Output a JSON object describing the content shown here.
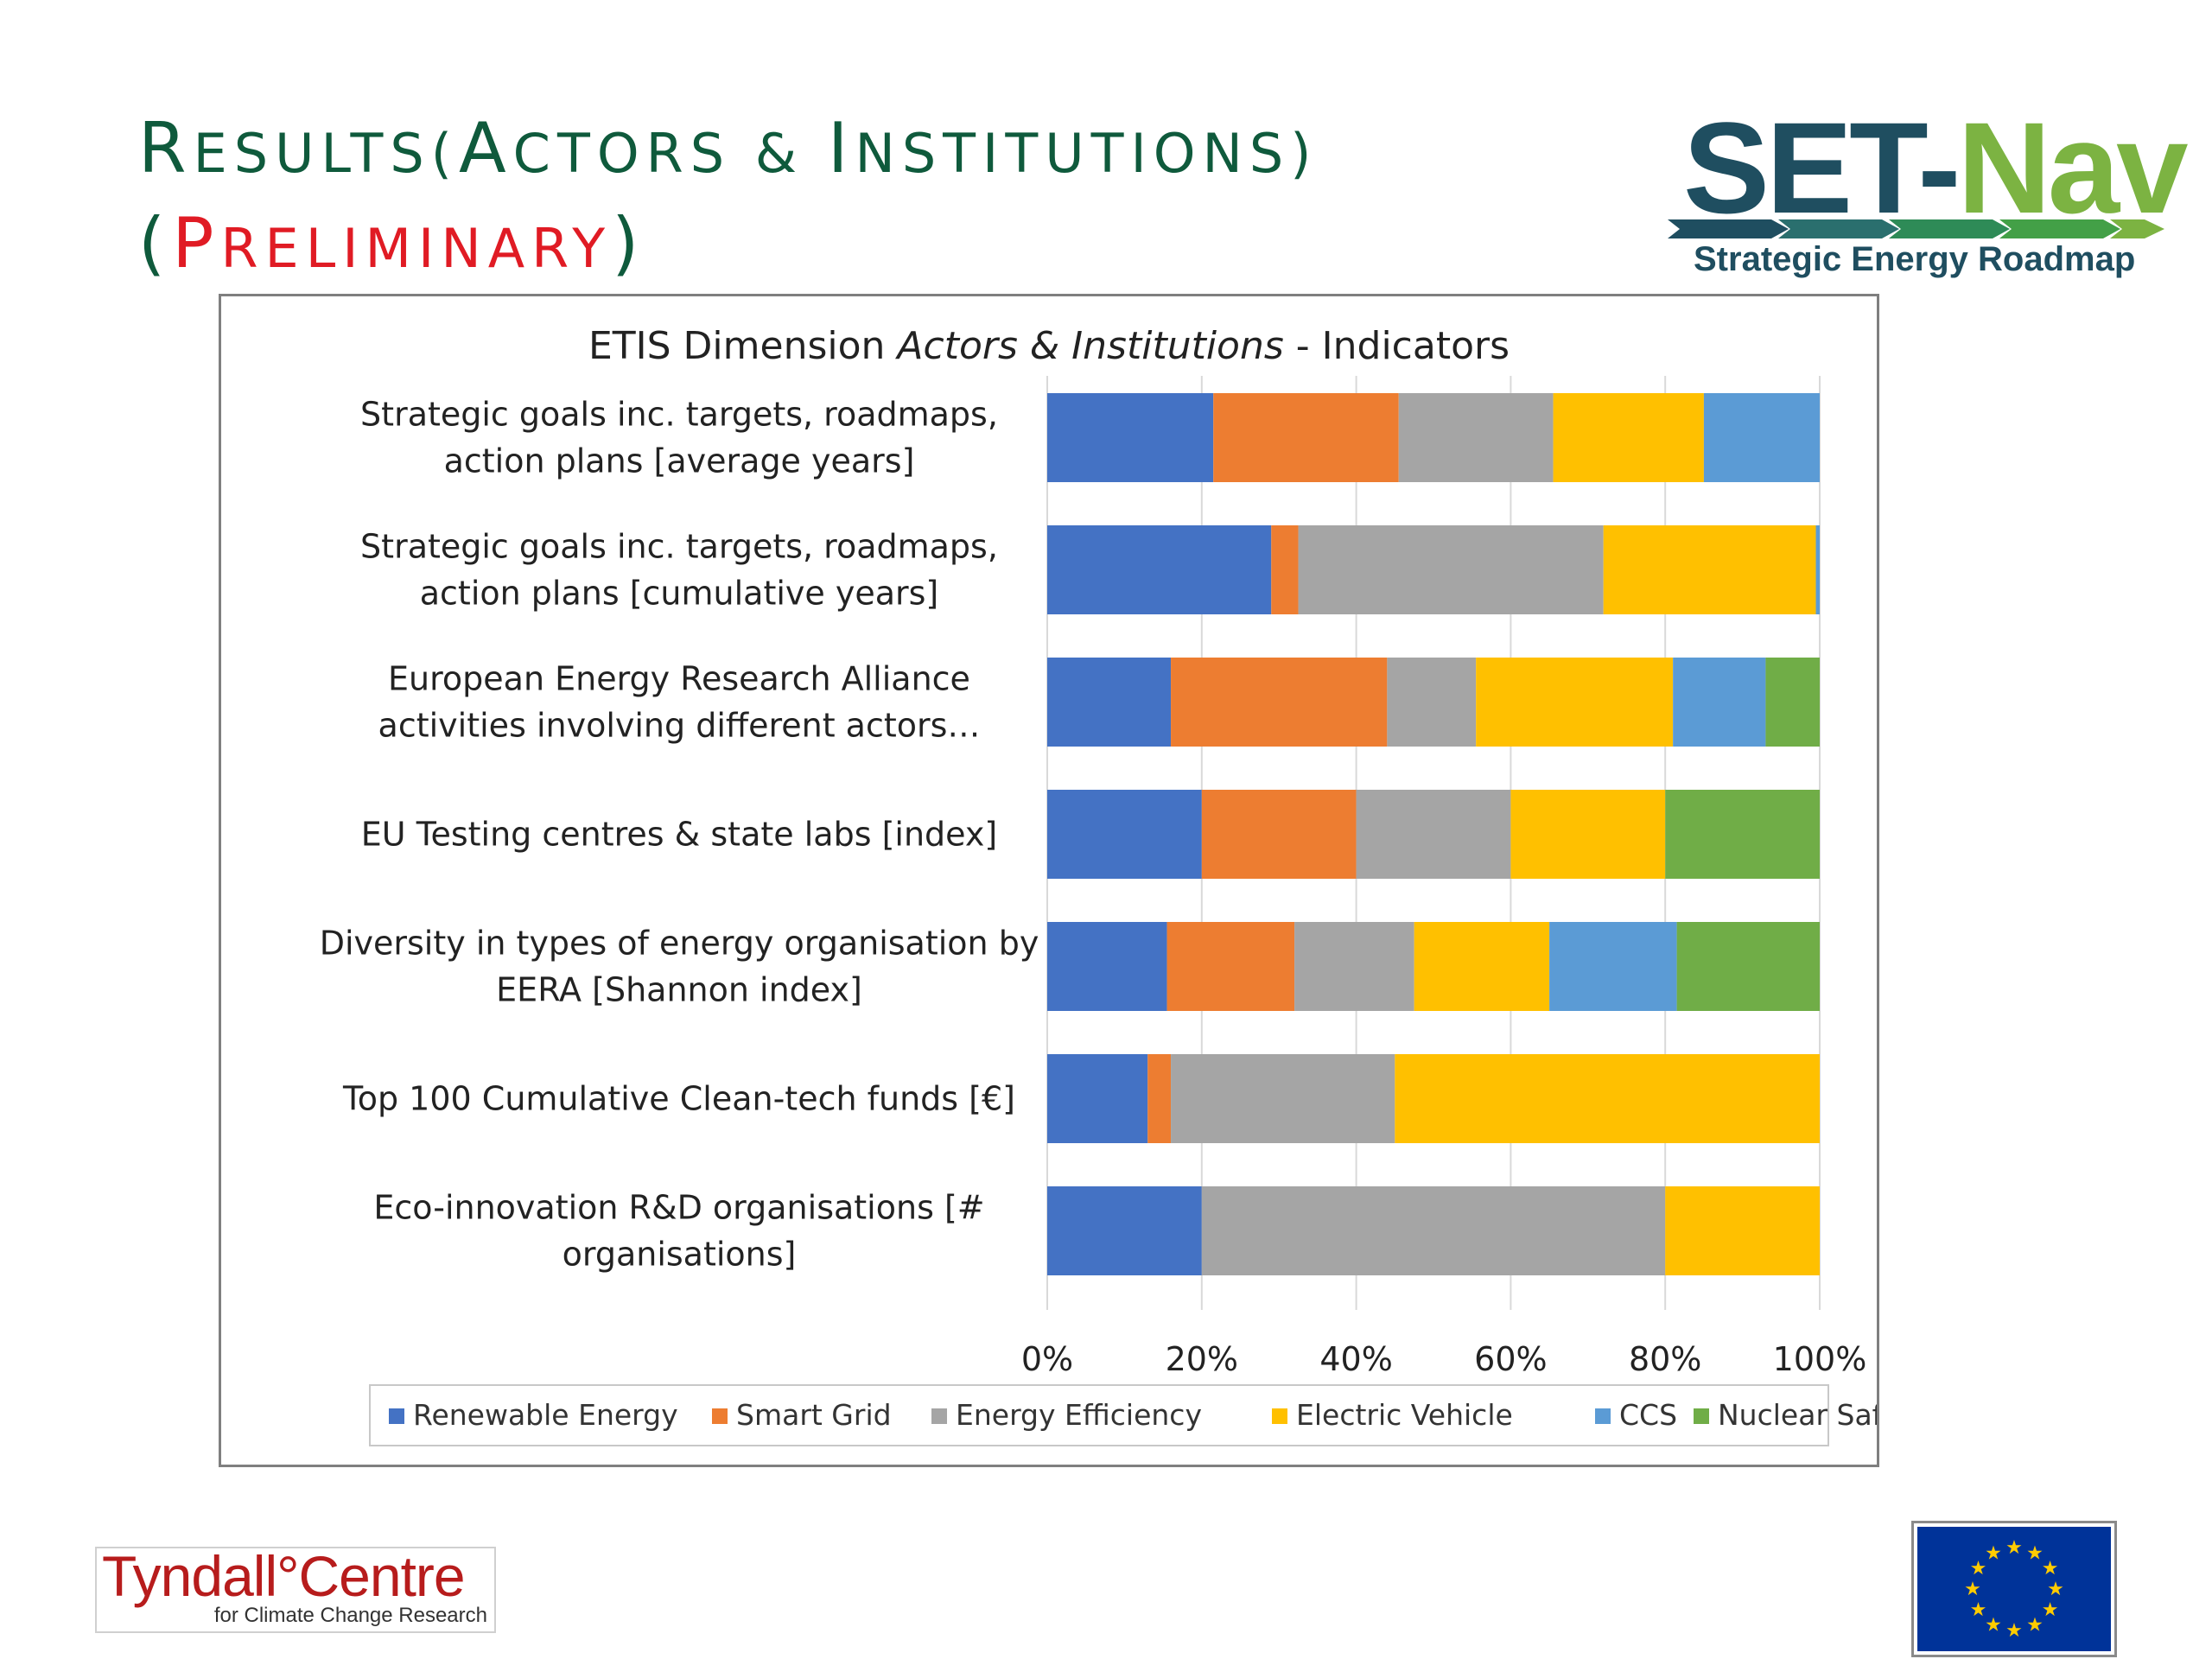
{
  "slide": {
    "title_parts": {
      "r1": "R",
      "r1_rest": "esults(",
      "a": "A",
      "a_rest": "ctors & ",
      "i": "I",
      "i_rest": "nstitutions)",
      "paren_open": "(",
      "p": "P",
      "p_rest": "reliminary",
      "paren_close": ")"
    }
  },
  "logos": {
    "setnav": {
      "dark_text": "SET-",
      "green_text": "Nav",
      "tagline": "Strategic Energy Roadmap"
    },
    "tyndall": {
      "name": "Tyndall°Centre",
      "sub": "for Climate Change Research"
    },
    "eu_flag_icon": "eu-flag-icon"
  },
  "chart_data": {
    "type": "bar",
    "orientation": "horizontal",
    "stacked": "percent",
    "title": "ETIS Dimension Actors & Institutions - Indicators",
    "title_parts": [
      "ETIS Dimension ",
      "Actors & Institutions",
      " - Indicators"
    ],
    "categories": [
      [
        "Strategic goals inc. targets, roadmaps,",
        "action plans [average years]"
      ],
      [
        "Strategic goals inc. targets, roadmaps,",
        "action plans [cumulative years]"
      ],
      [
        "European Energy Research Alliance",
        "activities involving different actors…"
      ],
      [
        "EU Testing centres & state labs [index]"
      ],
      [
        "Diversity in types of energy organisation by",
        "EERA [Shannon index]"
      ],
      [
        "Top 100 Cumulative Clean-tech funds [€]"
      ],
      [
        "Eco-innovation R&D organisations [#",
        "organisations]"
      ]
    ],
    "series": [
      {
        "name": "Renewable Energy",
        "color": "#4472c4",
        "values": [
          21.5,
          29,
          16,
          20,
          15.5,
          13,
          20
        ]
      },
      {
        "name": "Smart Grid",
        "color": "#ed7d31",
        "values": [
          24,
          3.5,
          28,
          20,
          16.5,
          3,
          0
        ]
      },
      {
        "name": "Energy Efficiency",
        "color": "#a5a5a5",
        "values": [
          20,
          39.5,
          11.5,
          20,
          15.5,
          29,
          60
        ]
      },
      {
        "name": "Electric Vehicle",
        "color": "#ffc000",
        "values": [
          19.5,
          27.5,
          25.5,
          20,
          17.5,
          55,
          20
        ]
      },
      {
        "name": "CCS",
        "color": "#5b9bd5",
        "values": [
          15,
          0.5,
          12,
          0,
          16.5,
          0,
          0
        ]
      },
      {
        "name": "Nuclear Safety",
        "color": "#70ad47",
        "values": [
          0,
          0,
          7,
          20,
          18.5,
          0,
          0
        ]
      }
    ],
    "xlim": [
      0,
      100
    ],
    "xticks": [
      "0%",
      "20%",
      "40%",
      "60%",
      "80%",
      "100%"
    ],
    "grid": true,
    "legend": "bottom"
  }
}
